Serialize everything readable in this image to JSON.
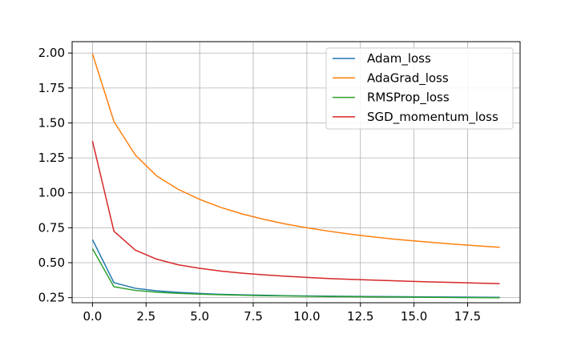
{
  "chart_data": {
    "type": "line",
    "title": "",
    "xlabel": "",
    "ylabel": "",
    "x": [
      0,
      1,
      2,
      3,
      4,
      5,
      6,
      7,
      8,
      9,
      10,
      11,
      12,
      13,
      14,
      15,
      16,
      17,
      18,
      19
    ],
    "xlim": [
      -0.95,
      19.95
    ],
    "ylim": [
      0.2135,
      2.0815
    ],
    "xticks": [
      0,
      2.5,
      5,
      7.5,
      10,
      12.5,
      15,
      17.5
    ],
    "xtick_labels": [
      "0.0",
      "2.5",
      "5.0",
      "7.5",
      "10.0",
      "12.5",
      "15.0",
      "17.5"
    ],
    "yticks": [
      0.25,
      0.5,
      0.75,
      1.0,
      1.25,
      1.5,
      1.75,
      2.0
    ],
    "ytick_labels": [
      "0.25",
      "0.50",
      "0.75",
      "1.00",
      "1.25",
      "1.50",
      "1.75",
      "2.00"
    ],
    "grid": true,
    "legend_position": "top-right",
    "series": [
      {
        "name": "Adam_loss",
        "color": "#1f77b4",
        "values": [
          0.665,
          0.357,
          0.317,
          0.299,
          0.288,
          0.28,
          0.274,
          0.27,
          0.267,
          0.264,
          0.262,
          0.261,
          0.259,
          0.258,
          0.257,
          0.256,
          0.255,
          0.254,
          0.253,
          0.252
        ]
      },
      {
        "name": "AdaGrad_loss",
        "color": "#ff7f0e",
        "values": [
          1.995,
          1.51,
          1.27,
          1.12,
          1.025,
          0.953,
          0.895,
          0.848,
          0.81,
          0.777,
          0.75,
          0.726,
          0.705,
          0.686,
          0.67,
          0.656,
          0.643,
          0.631,
          0.62,
          0.61
        ]
      },
      {
        "name": "RMSProp_loss",
        "color": "#2ca02c",
        "values": [
          0.6,
          0.328,
          0.302,
          0.289,
          0.281,
          0.275,
          0.271,
          0.267,
          0.264,
          0.262,
          0.26,
          0.258,
          0.257,
          0.255,
          0.254,
          0.253,
          0.252,
          0.251,
          0.25,
          0.249
        ]
      },
      {
        "name": "SGD_momentum_loss",
        "color": "#d62728",
        "values": [
          1.37,
          0.725,
          0.59,
          0.525,
          0.485,
          0.46,
          0.44,
          0.425,
          0.413,
          0.403,
          0.395,
          0.387,
          0.381,
          0.376,
          0.371,
          0.366,
          0.362,
          0.358,
          0.354,
          0.35
        ]
      }
    ]
  }
}
